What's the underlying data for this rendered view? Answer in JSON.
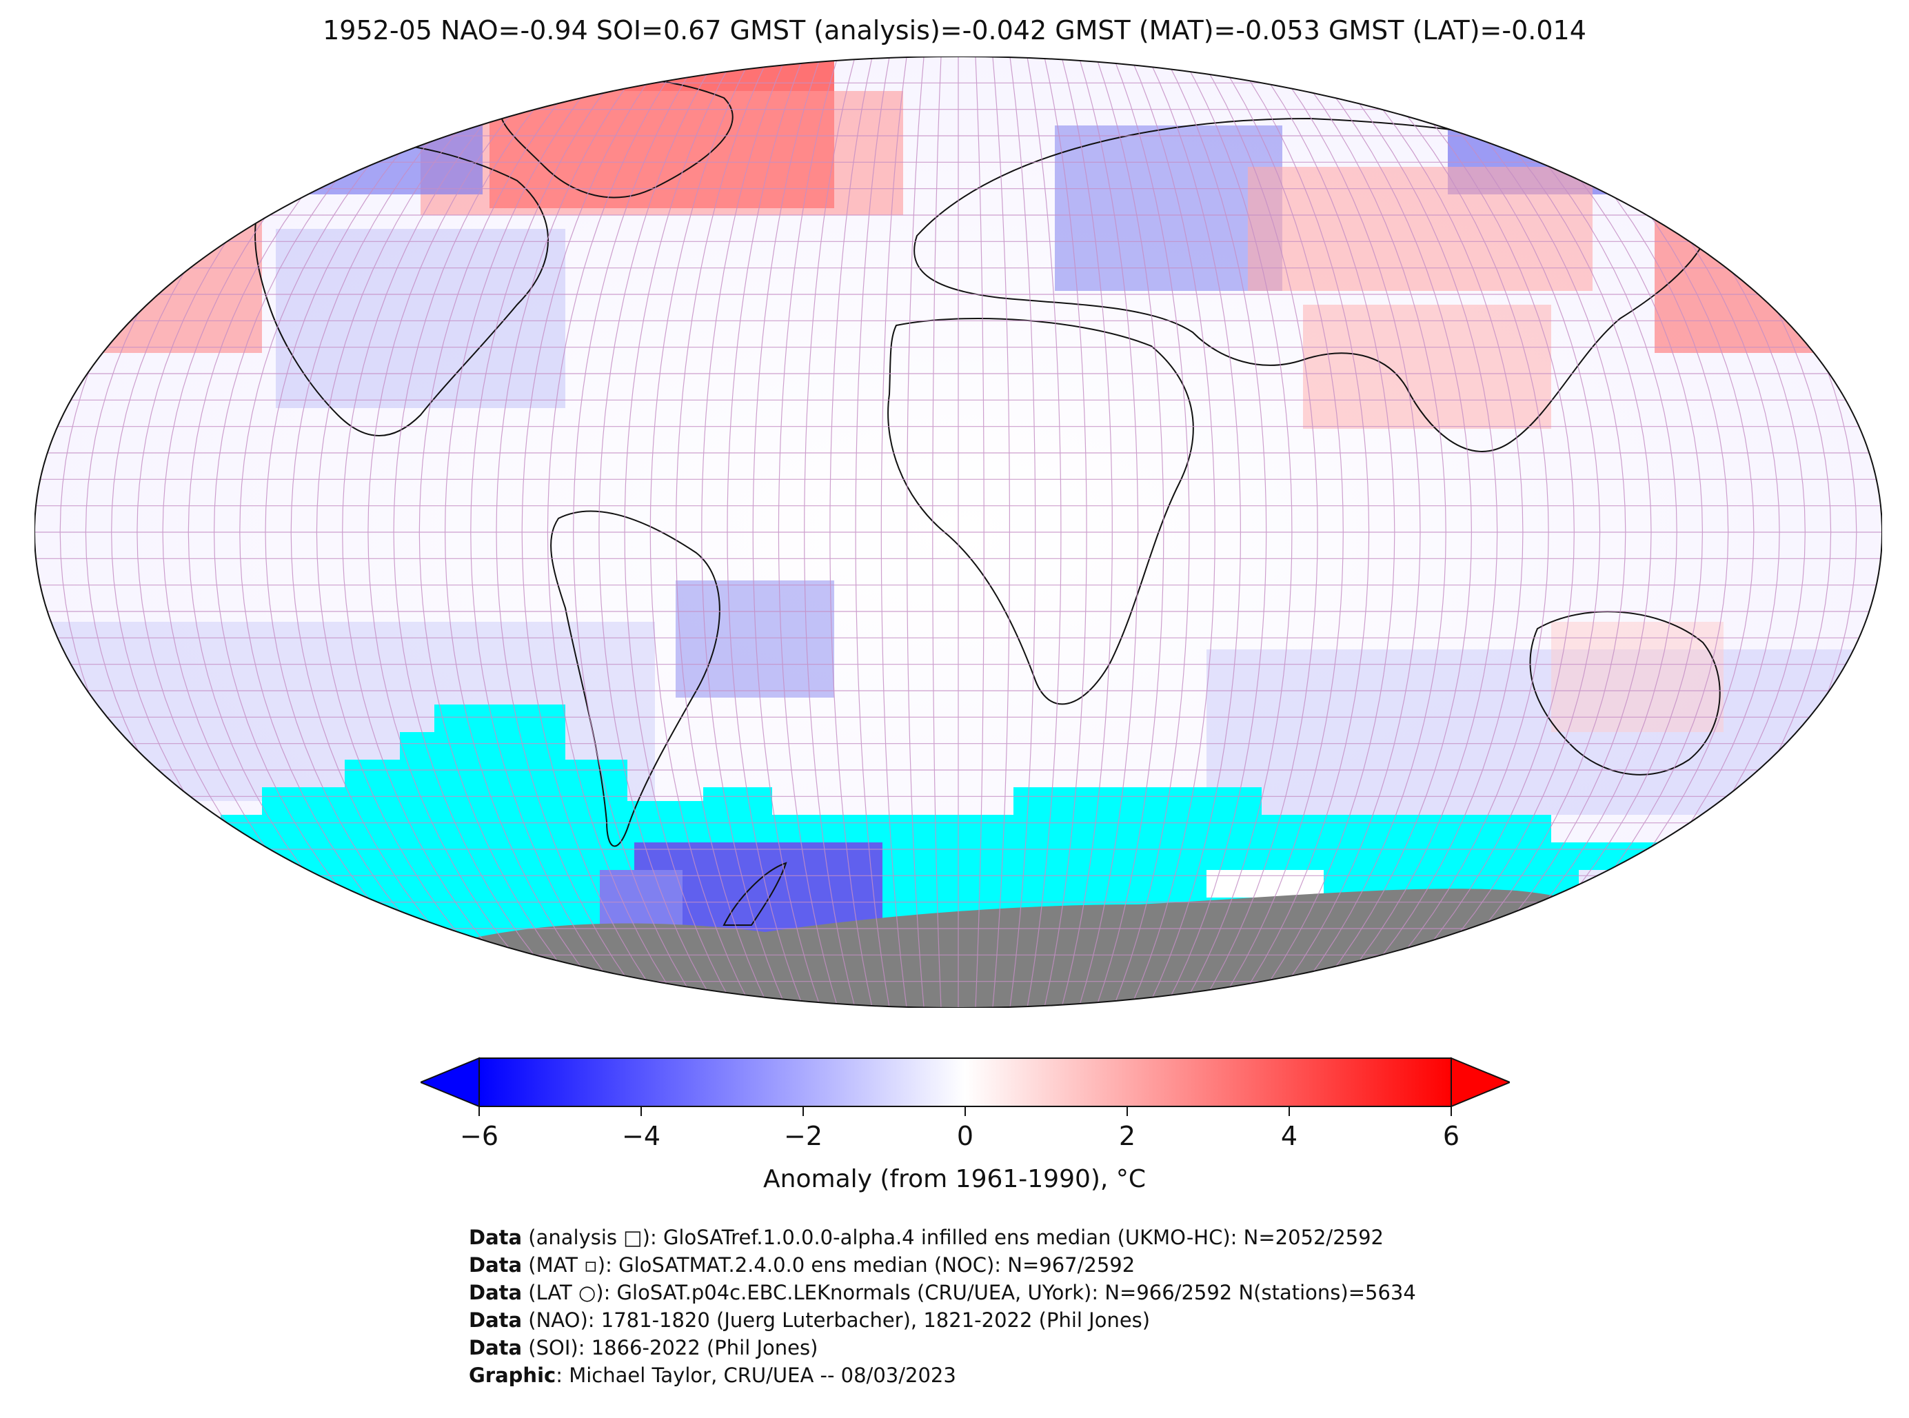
{
  "title": "1952-05 NAO=-0.94 SOI=0.67 GMST (analysis)=-0.042 GMST (MAT)=-0.053 GMST (LAT)=-0.014",
  "colorbar": {
    "ticks": [
      "−6",
      "−4",
      "−2",
      "0",
      "2",
      "4",
      "6"
    ],
    "tick_values": [
      -6,
      -4,
      -2,
      0,
      2,
      4,
      6
    ],
    "range": [
      -6,
      6
    ],
    "extend": "both",
    "colors": {
      "min": "#0000ff",
      "mid": "#ffffff",
      "max": "#ff0000"
    },
    "label": "Anomaly (from 1961-1990), °C"
  },
  "map": {
    "projection": "Robinson",
    "grid": true,
    "ocean_missing_color": "#00ffff",
    "land_mask_color": "#808080",
    "grid_line_color": "#c080c0"
  },
  "credits": [
    {
      "bold": "Data",
      "text": " (analysis □): GloSATref.1.0.0.0-alpha.4 infilled ens median (UKMO-HC): N=2052/2592"
    },
    {
      "bold": "Data",
      "text": " (MAT ▫): GloSATMAT.2.4.0.0 ens median (NOC): N=967/2592"
    },
    {
      "bold": "Data",
      "text": " (LAT ○): GloSAT.p04c.EBC.LEKnormals (CRU/UEA, UYork): N=966/2592 N(stations)=5634"
    },
    {
      "bold": "Data",
      "text": " (NAO): 1781-1820 (Juerg Luterbacher), 1821-2022 (Phil Jones)"
    },
    {
      "bold": "Data",
      "text": " (SOI): 1866-2022 (Phil Jones)"
    },
    {
      "bold": "Graphic",
      "text": ": Michael Taylor, CRU/UEA -- 08/03/2023"
    }
  ]
}
